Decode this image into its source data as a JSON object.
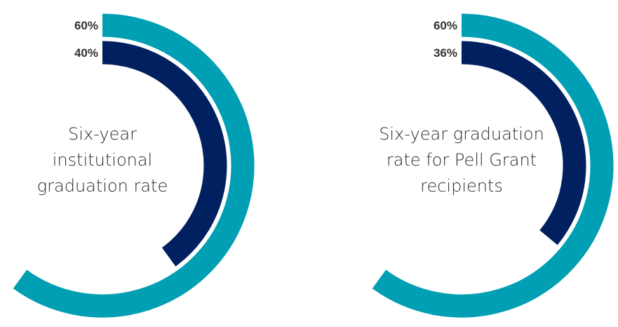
{
  "colors": {
    "outer": "#009fb3",
    "inner": "#00205f",
    "label": "#333333"
  },
  "chart_data": [
    {
      "type": "radial-bar",
      "series": [
        {
          "name": "",
          "value": 60,
          "label": "60%"
        },
        {
          "name": "",
          "value": 40,
          "label": "40%"
        }
      ],
      "center_text": [
        "Six-year",
        "institutional",
        "graduation rate"
      ]
    },
    {
      "type": "radial-bar",
      "series": [
        {
          "name": "",
          "value": 60,
          "label": "60%"
        },
        {
          "name": "",
          "value": 36,
          "label": "36%"
        }
      ],
      "center_text": [
        "Six-year graduation",
        "rate for Pell Grant",
        "recipients"
      ]
    }
  ]
}
